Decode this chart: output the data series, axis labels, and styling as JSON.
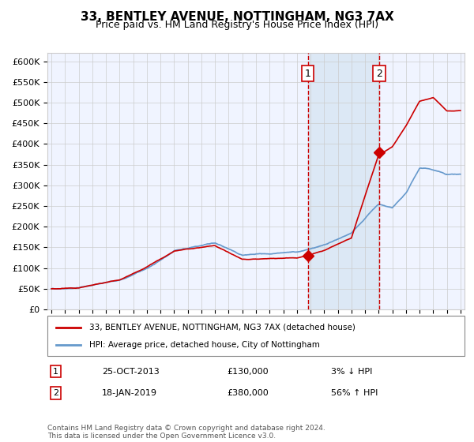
{
  "title": "33, BENTLEY AVENUE, NOTTINGHAM, NG3 7AX",
  "subtitle": "Price paid vs. HM Land Registry's House Price Index (HPI)",
  "title_fontsize": 11,
  "subtitle_fontsize": 9,
  "ylabel_ticks": [
    "£0",
    "£50K",
    "£100K",
    "£150K",
    "£200K",
    "£250K",
    "£300K",
    "£350K",
    "£400K",
    "£450K",
    "£500K",
    "£550K",
    "£600K"
  ],
  "ylim": [
    0,
    620000
  ],
  "ytick_vals": [
    0,
    50000,
    100000,
    150000,
    200000,
    250000,
    300000,
    350000,
    400000,
    450000,
    500000,
    550000,
    600000
  ],
  "x_start_year": 1995,
  "x_end_year": 2025,
  "sale1_date": 2013.81,
  "sale1_price": 130000,
  "sale2_date": 2019.05,
  "sale2_price": 380000,
  "sale1_label": "1",
  "sale2_label": "2",
  "hpi_color": "#6699cc",
  "price_color": "#cc0000",
  "bg_color": "#f0f4ff",
  "highlight_color": "#dce8f5",
  "grid_color": "#cccccc",
  "legend1": "33, BENTLEY AVENUE, NOTTINGHAM, NG3 7AX (detached house)",
  "legend2": "HPI: Average price, detached house, City of Nottingham",
  "note1_num": "1",
  "note1_date": "25-OCT-2013",
  "note1_price": "£130,000",
  "note1_hpi": "3% ↓ HPI",
  "note2_num": "2",
  "note2_date": "18-JAN-2019",
  "note2_price": "£380,000",
  "note2_hpi": "56% ↑ HPI",
  "footer": "Contains HM Land Registry data © Crown copyright and database right 2024.\nThis data is licensed under the Open Government Licence v3.0."
}
